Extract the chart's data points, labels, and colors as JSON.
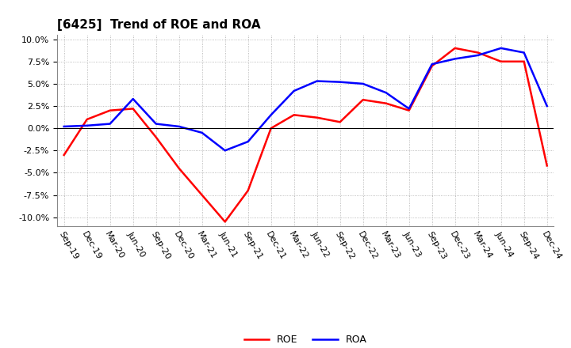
{
  "title": "[6425]  Trend of ROE and ROA",
  "x_labels": [
    "Sep-19",
    "Dec-19",
    "Mar-20",
    "Jun-20",
    "Sep-20",
    "Dec-20",
    "Mar-21",
    "Jun-21",
    "Sep-21",
    "Dec-21",
    "Mar-22",
    "Jun-22",
    "Sep-22",
    "Dec-22",
    "Mar-23",
    "Jun-23",
    "Sep-23",
    "Dec-23",
    "Mar-24",
    "Jun-24",
    "Sep-24",
    "Dec-24"
  ],
  "roe": [
    -3.0,
    1.0,
    2.0,
    2.2,
    -1.0,
    -4.5,
    -7.5,
    -10.5,
    -7.0,
    0.0,
    1.5,
    1.2,
    0.7,
    3.2,
    2.8,
    2.0,
    7.0,
    9.0,
    8.5,
    7.5,
    7.5,
    -4.2
  ],
  "roa": [
    0.2,
    0.3,
    0.5,
    3.3,
    0.5,
    0.2,
    -0.5,
    -2.5,
    -1.5,
    1.5,
    4.2,
    5.3,
    5.2,
    5.0,
    4.0,
    2.2,
    7.2,
    7.8,
    8.2,
    9.0,
    8.5,
    2.5
  ],
  "roe_color": "#FF0000",
  "roa_color": "#0000FF",
  "ylim": [
    -11.0,
    10.5
  ],
  "yticks": [
    -10.0,
    -7.5,
    -5.0,
    -2.5,
    0.0,
    2.5,
    5.0,
    7.5,
    10.0
  ],
  "background_color": "#FFFFFF",
  "plot_bg_color": "#FFFFFF",
  "grid_color": "#AAAAAA",
  "title_fontsize": 11,
  "axis_fontsize": 8,
  "legend_fontsize": 9
}
